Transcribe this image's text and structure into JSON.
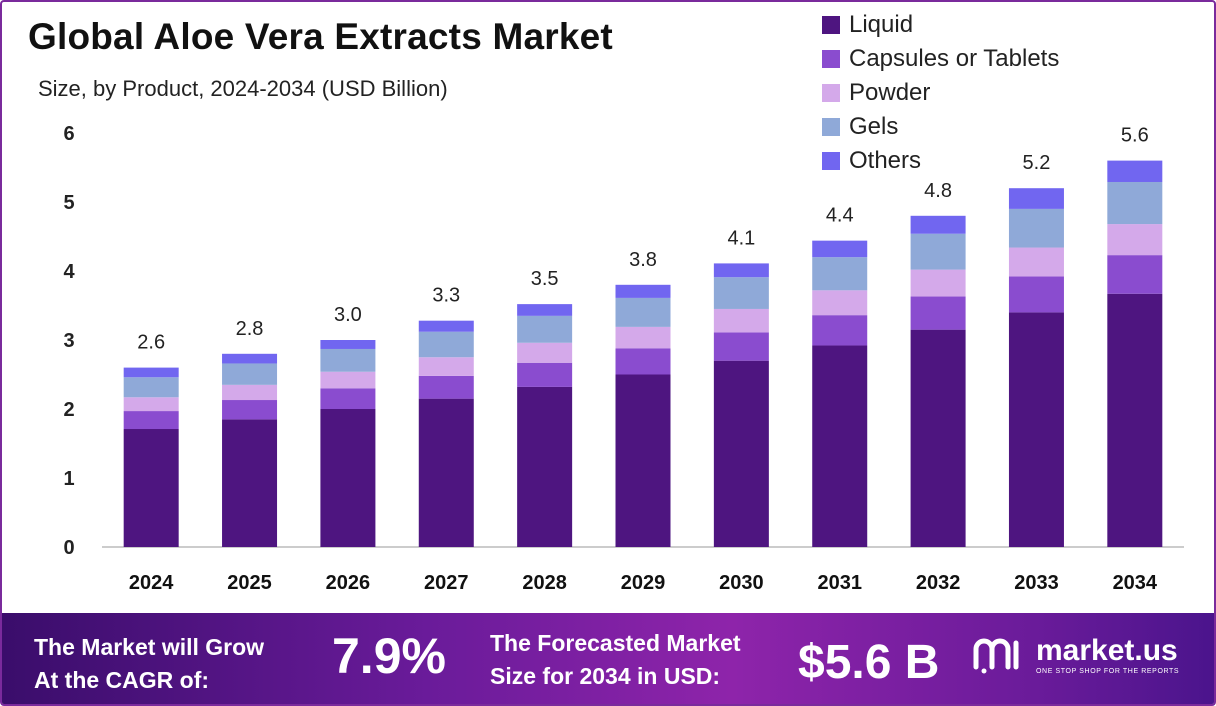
{
  "title": "Global Aloe Vera Extracts Market",
  "subtitle": "Size, by Product, 2024-2034 (USD Billion)",
  "colors": {
    "Liquid": "#4e1580",
    "Capsules or Tablets": "#8a4ccf",
    "Powder": "#d4a9ea",
    "Gels": "#8fa9d8",
    "Others": "#7166f0"
  },
  "chart_data": {
    "type": "bar",
    "stacked": true,
    "categories": [
      "2024",
      "2025",
      "2026",
      "2027",
      "2028",
      "2029",
      "2030",
      "2031",
      "2032",
      "2033",
      "2034"
    ],
    "series": [
      {
        "name": "Liquid",
        "values": [
          1.71,
          1.85,
          2.0,
          2.15,
          2.32,
          2.5,
          2.7,
          2.92,
          3.15,
          3.4,
          3.67
        ]
      },
      {
        "name": "Capsules or Tablets",
        "values": [
          0.26,
          0.28,
          0.3,
          0.33,
          0.35,
          0.38,
          0.41,
          0.44,
          0.48,
          0.52,
          0.56
        ]
      },
      {
        "name": "Powder",
        "values": [
          0.2,
          0.22,
          0.24,
          0.27,
          0.29,
          0.31,
          0.34,
          0.36,
          0.39,
          0.42,
          0.45
        ]
      },
      {
        "name": "Gels",
        "values": [
          0.29,
          0.31,
          0.33,
          0.37,
          0.39,
          0.42,
          0.46,
          0.48,
          0.52,
          0.56,
          0.61
        ]
      },
      {
        "name": "Others",
        "values": [
          0.14,
          0.14,
          0.13,
          0.16,
          0.17,
          0.19,
          0.2,
          0.24,
          0.26,
          0.3,
          0.31
        ]
      }
    ],
    "totals": [
      2.6,
      2.8,
      3.0,
      3.3,
      3.5,
      3.8,
      4.1,
      4.4,
      4.8,
      5.2,
      5.6
    ],
    "total_labels": [
      "2.6",
      "2.8",
      "3.0",
      "3.3",
      "3.5",
      "3.8",
      "4.1",
      "4.4",
      "4.8",
      "5.2",
      "5.6"
    ],
    "ylim": [
      0,
      6
    ],
    "yticks": [
      "0",
      "1",
      "2",
      "3",
      "4",
      "5",
      "6"
    ],
    "xlabel": "",
    "ylabel": "",
    "legend_position": "top-right"
  },
  "legend": [
    "Liquid",
    "Capsules or Tablets",
    "Powder",
    "Gels",
    "Others"
  ],
  "footer": {
    "cagr_text_1": "The Market will Grow",
    "cagr_text_2": "At the CAGR of:",
    "cagr_value": "7.9%",
    "forecast_text_1": "The Forecasted Market",
    "forecast_text_2": "Size for 2034 in USD:",
    "forecast_value": "$5.6 B",
    "brand_name": "market.us",
    "brand_tagline": "ONE STOP SHOP FOR THE REPORTS"
  }
}
